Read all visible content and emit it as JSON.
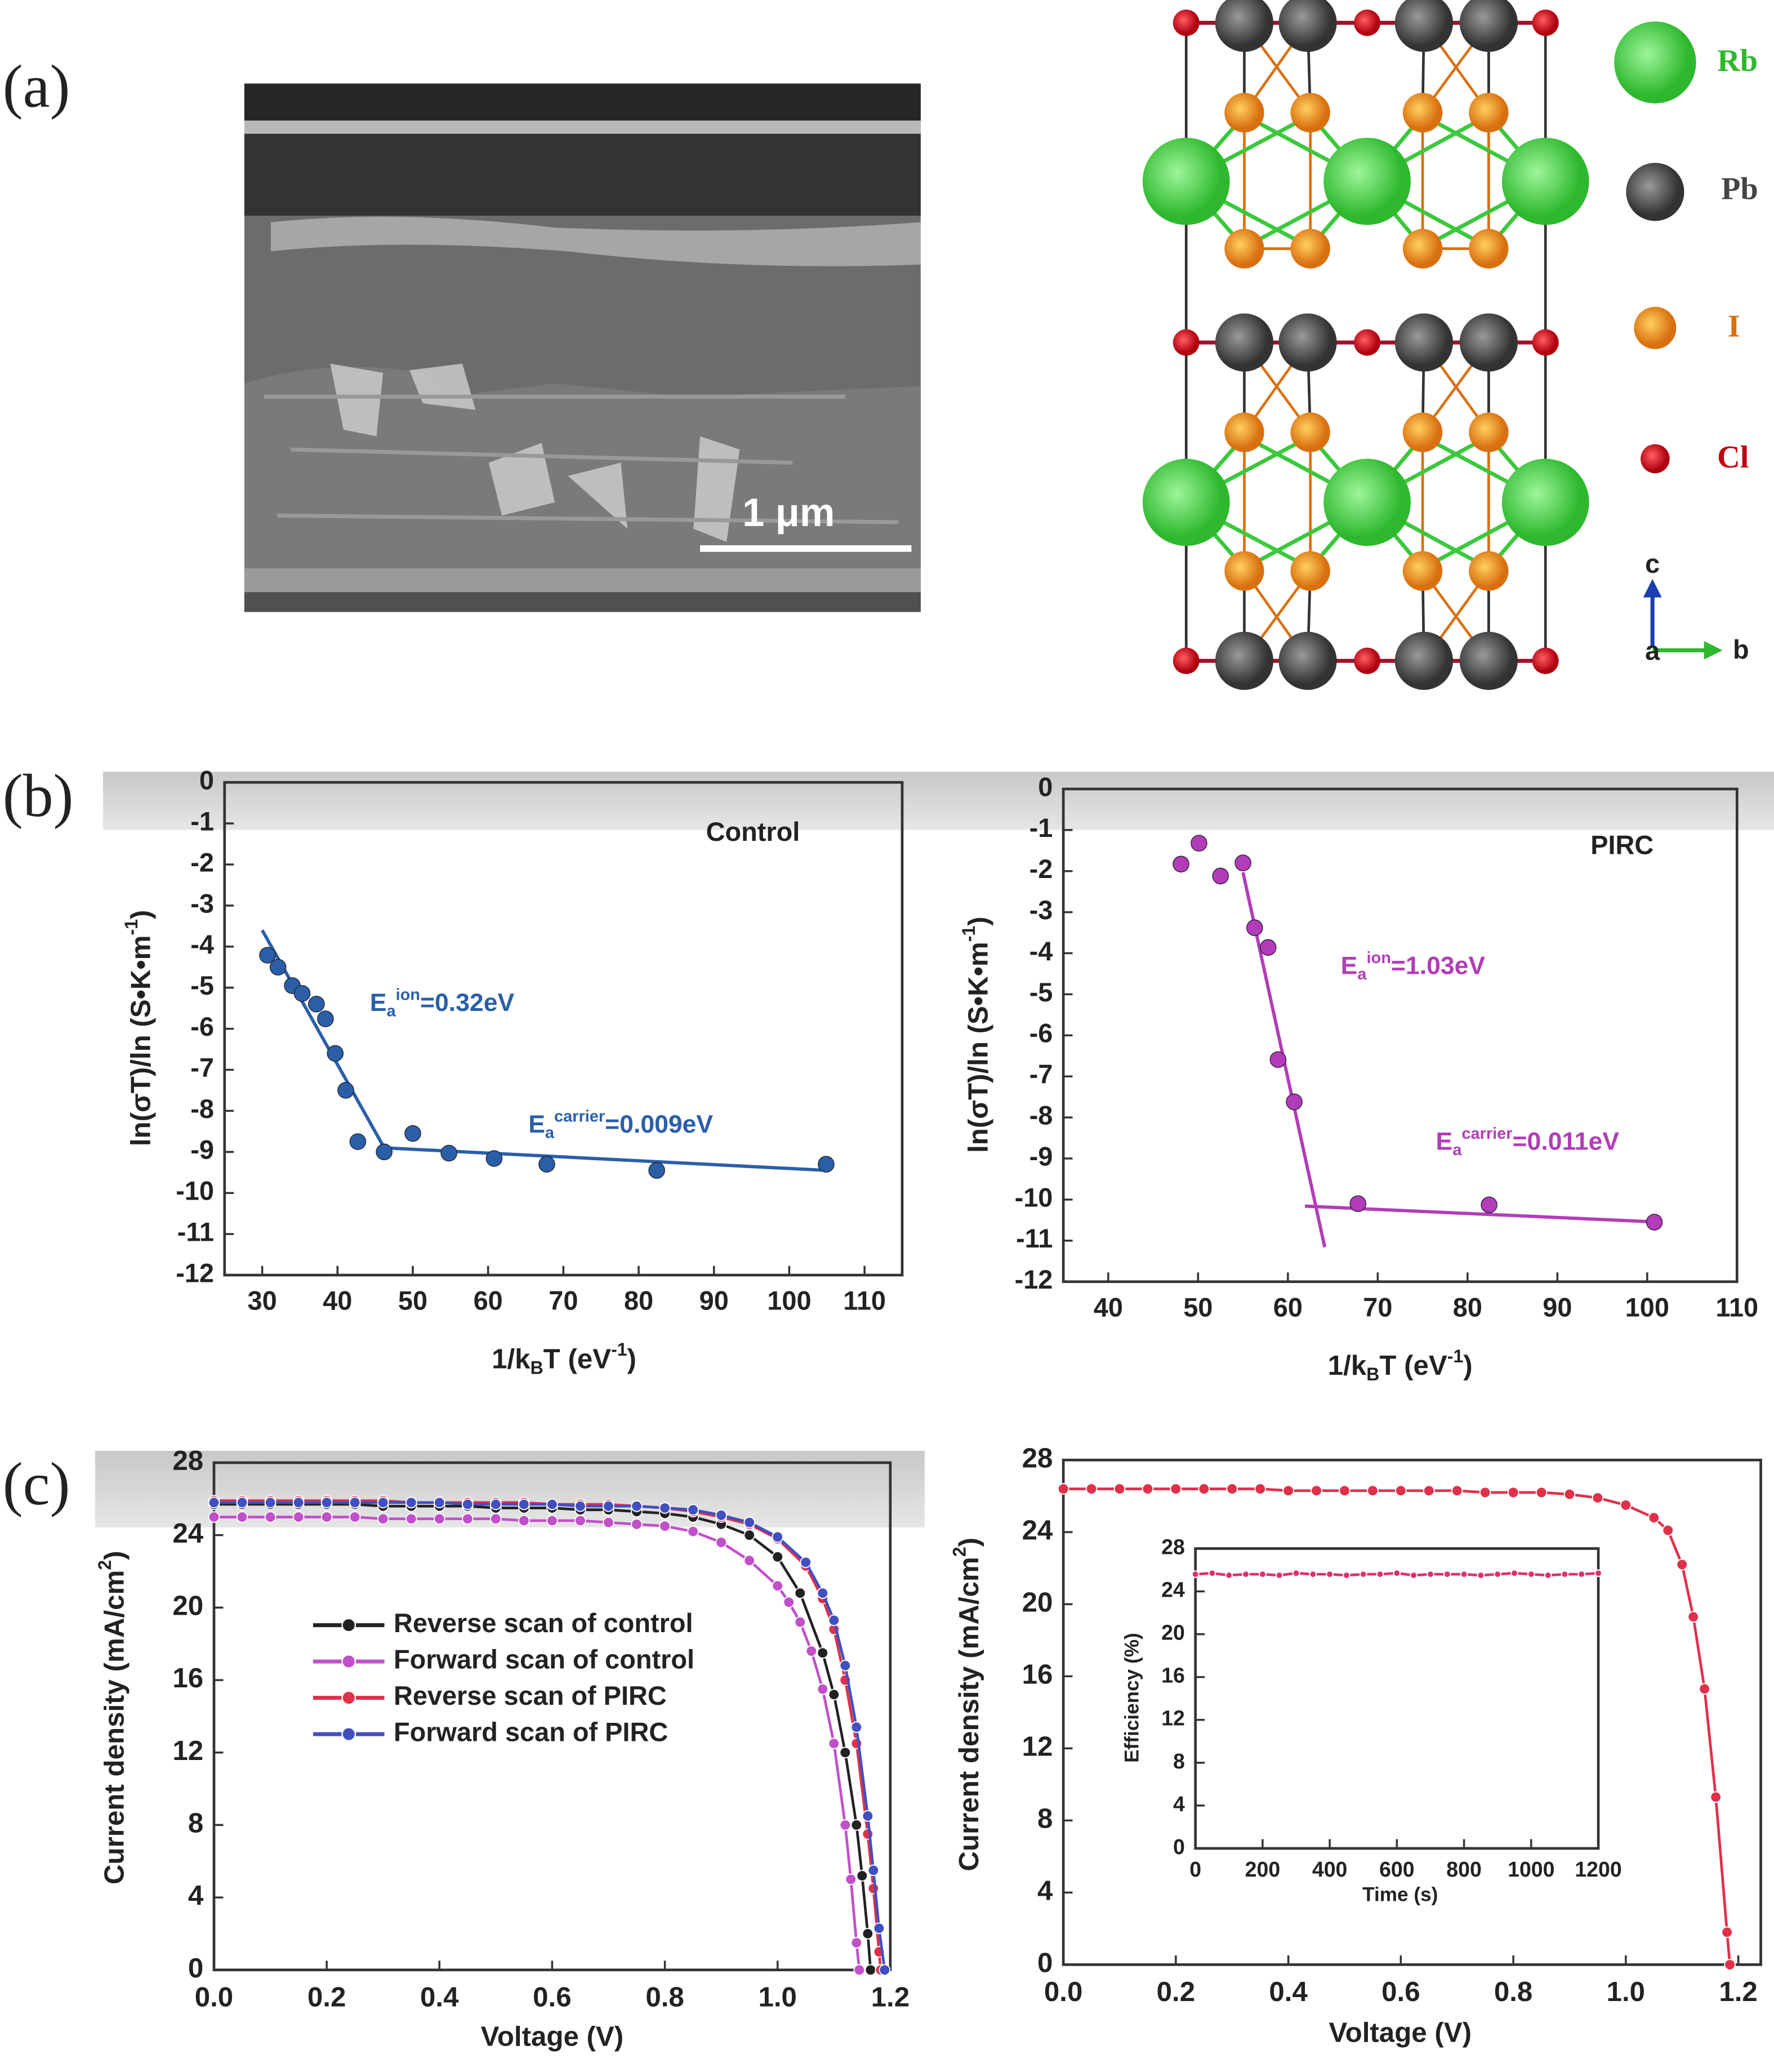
{
  "panel_labels": [
    "(a)",
    "(b)",
    "(c)"
  ],
  "sem": {
    "scale_bar": "1 μm"
  },
  "structure": {
    "legend": [
      "Rb",
      "Pb",
      "I",
      "Cl"
    ],
    "axes": [
      "c",
      "a",
      "b"
    ]
  },
  "chart_data": [
    {
      "type": "scatter",
      "title": "Control",
      "xlabel": [
        {
          "t": "1/k"
        },
        {
          "sub": "B"
        },
        {
          "t": "T (eV"
        },
        {
          "sup": "-1"
        },
        {
          "t": ")"
        }
      ],
      "ylabel": [
        {
          "t": "ln(σT)/ln (S•K•m"
        },
        {
          "sup": "-1"
        },
        {
          "t": ")"
        }
      ],
      "xlim": [
        25,
        115
      ],
      "ylim": [
        -12,
        0
      ],
      "xticks": [
        30,
        40,
        50,
        60,
        70,
        80,
        90,
        100,
        110
      ],
      "yticks": [
        0,
        -1,
        -2,
        -3,
        -4,
        -5,
        -6,
        -7,
        -8,
        -9,
        -10,
        -11,
        -12
      ],
      "series": [
        {
          "color": "#2a5fa8",
          "x": [
            30.7,
            32.1,
            34.0,
            35.3,
            37.2,
            38.4,
            39.7,
            41.1,
            42.7,
            46.2,
            50.0,
            54.8,
            60.8,
            67.8,
            82.4,
            104.9
          ],
          "values": [
            -4.21,
            -4.5,
            -4.95,
            -5.14,
            -5.4,
            -5.76,
            -6.6,
            -7.5,
            -8.75,
            -9.0,
            -8.55,
            -9.03,
            -9.16,
            -9.3,
            -9.45,
            -9.3
          ]
        }
      ],
      "fits": [
        {
          "x": [
            30,
            46.2
          ],
          "values": [
            -3.6,
            -8.9
          ]
        },
        {
          "x": [
            46.2,
            105
          ],
          "values": [
            -8.9,
            -9.45
          ]
        }
      ],
      "annotations": [
        {
          "parts": [
            {
              "t": "E"
            },
            {
              "sub": "a"
            },
            {
              "sup": "ion"
            },
            {
              "t": "=0.32eV"
            }
          ]
        },
        {
          "parts": [
            {
              "t": "E"
            },
            {
              "sub": "a"
            },
            {
              "sup": "carrier"
            },
            {
              "t": "=0.009eV"
            }
          ]
        }
      ]
    },
    {
      "type": "scatter",
      "title": "PIRC",
      "xlabel": [
        {
          "t": "1/k"
        },
        {
          "sub": "B"
        },
        {
          "t": "T (eV"
        },
        {
          "sup": "-1"
        },
        {
          "t": ")"
        }
      ],
      "ylabel": [
        {
          "t": "ln(σT)/ln (S•K•m"
        },
        {
          "sup": "-1"
        },
        {
          "t": ")"
        }
      ],
      "xlim": [
        35,
        110
      ],
      "ylim": [
        -12,
        0
      ],
      "xticks": [
        40,
        50,
        60,
        70,
        80,
        90,
        100,
        110
      ],
      "yticks": [
        0,
        -1,
        -2,
        -3,
        -4,
        -5,
        -6,
        -7,
        -8,
        -9,
        -10,
        -11,
        -12
      ],
      "series": [
        {
          "color": "#b23cb8",
          "x": [
            48.1,
            50.1,
            52.5,
            55.0,
            56.3,
            57.8,
            58.9,
            60.7,
            67.8,
            82.4,
            100.8
          ],
          "values": [
            -1.83,
            -1.32,
            -2.12,
            -1.8,
            -3.38,
            -3.86,
            -6.59,
            -7.62,
            -10.1,
            -10.13,
            -10.55
          ]
        }
      ],
      "fits": [
        {
          "x": [
            55.0,
            64.1
          ],
          "values": [
            -2.03,
            -11.16
          ]
        },
        {
          "x": [
            61.9,
            101.5
          ],
          "values": [
            -10.16,
            -10.55
          ]
        }
      ],
      "annotations": [
        {
          "parts": [
            {
              "t": "E"
            },
            {
              "sub": "a"
            },
            {
              "sup": "ion"
            },
            {
              "t": "=1.03eV"
            }
          ]
        },
        {
          "parts": [
            {
              "t": "E"
            },
            {
              "sub": "a"
            },
            {
              "sup": "carrier"
            },
            {
              "t": "=0.011eV"
            }
          ]
        }
      ]
    },
    {
      "type": "line",
      "xlabel": [
        {
          "t": "Voltage (V)"
        }
      ],
      "ylabel": [
        {
          "t": "Current density (mA/cm"
        },
        {
          "sup": "2"
        },
        {
          "t": ")"
        }
      ],
      "xlim": [
        0,
        1.2
      ],
      "ylim": [
        0,
        28
      ],
      "xticks": [
        {
          "value": 0,
          "label": "0.0"
        },
        0.2,
        0.4,
        0.6,
        0.8,
        {
          "value": 1,
          "label": "1.0"
        },
        1.2
      ],
      "yticks": [
        0,
        4,
        8,
        12,
        16,
        20,
        24,
        28
      ],
      "series": [
        {
          "name": "Reverse scan of control",
          "color": "#222222",
          "x": [
            0,
            0.05,
            0.1,
            0.15,
            0.2,
            0.25,
            0.3,
            0.35,
            0.4,
            0.45,
            0.5,
            0.55,
            0.6,
            0.65,
            0.7,
            0.75,
            0.8,
            0.85,
            0.9,
            0.95,
            1.0,
            1.04,
            1.08,
            1.1,
            1.12,
            1.14,
            1.15,
            1.16,
            1.165
          ],
          "values": [
            25.7,
            25.7,
            25.7,
            25.7,
            25.7,
            25.7,
            25.6,
            25.6,
            25.6,
            25.6,
            25.5,
            25.5,
            25.5,
            25.4,
            25.4,
            25.3,
            25.2,
            25.0,
            24.6,
            24.0,
            22.8,
            20.8,
            17.5,
            15.2,
            12.0,
            8.0,
            5.2,
            2.0,
            0
          ]
        },
        {
          "name": "Forward scan of control",
          "color": "#c050c8",
          "x": [
            0,
            0.05,
            0.1,
            0.15,
            0.2,
            0.25,
            0.3,
            0.35,
            0.4,
            0.45,
            0.5,
            0.55,
            0.6,
            0.65,
            0.7,
            0.75,
            0.8,
            0.85,
            0.9,
            0.95,
            1.0,
            1.02,
            1.04,
            1.06,
            1.08,
            1.1,
            1.12,
            1.13,
            1.14,
            1.145
          ],
          "values": [
            25.0,
            25.0,
            25.0,
            25.0,
            25.0,
            25.0,
            24.9,
            24.9,
            24.9,
            24.9,
            24.9,
            24.8,
            24.8,
            24.8,
            24.7,
            24.6,
            24.5,
            24.2,
            23.6,
            22.6,
            21.2,
            20.3,
            19.2,
            17.6,
            15.5,
            12.5,
            8.0,
            5.0,
            1.5,
            0
          ]
        },
        {
          "name": "Reverse scan of PIRC",
          "color": "#e0304a",
          "x": [
            0,
            0.05,
            0.1,
            0.15,
            0.2,
            0.25,
            0.3,
            0.35,
            0.4,
            0.45,
            0.5,
            0.55,
            0.6,
            0.65,
            0.7,
            0.75,
            0.8,
            0.85,
            0.9,
            0.95,
            1.0,
            1.05,
            1.08,
            1.1,
            1.12,
            1.14,
            1.16,
            1.17,
            1.18,
            1.183
          ],
          "values": [
            25.9,
            25.9,
            25.9,
            25.9,
            25.9,
            25.9,
            25.9,
            25.8,
            25.8,
            25.8,
            25.8,
            25.8,
            25.7,
            25.7,
            25.7,
            25.6,
            25.5,
            25.3,
            25.0,
            24.6,
            23.8,
            22.3,
            20.5,
            18.8,
            16.0,
            12.5,
            7.5,
            4.5,
            1.0,
            0
          ]
        },
        {
          "name": "Forward scan of PIRC",
          "color": "#4050c0",
          "x": [
            0,
            0.05,
            0.1,
            0.15,
            0.2,
            0.25,
            0.3,
            0.35,
            0.4,
            0.45,
            0.5,
            0.55,
            0.6,
            0.65,
            0.7,
            0.75,
            0.8,
            0.85,
            0.9,
            0.95,
            1.0,
            1.05,
            1.08,
            1.1,
            1.12,
            1.14,
            1.16,
            1.17,
            1.18,
            1.19
          ],
          "values": [
            25.8,
            25.8,
            25.8,
            25.8,
            25.8,
            25.8,
            25.8,
            25.8,
            25.8,
            25.7,
            25.7,
            25.7,
            25.7,
            25.6,
            25.6,
            25.6,
            25.5,
            25.4,
            25.1,
            24.7,
            23.9,
            22.5,
            20.8,
            19.3,
            16.8,
            13.4,
            8.5,
            5.5,
            2.3,
            0
          ]
        }
      ]
    },
    {
      "type": "line",
      "xlabel": [
        {
          "t": "Voltage (V)"
        }
      ],
      "ylabel": [
        {
          "t": "Current density (mA/cm"
        },
        {
          "sup": "2"
        },
        {
          "t": ")"
        }
      ],
      "xlim": [
        0,
        1.24
      ],
      "ylim": [
        0,
        28
      ],
      "xticks": [
        {
          "value": 0,
          "label": "0.0"
        },
        0.2,
        0.4,
        0.6,
        0.8,
        {
          "value": 1,
          "label": "1.0"
        },
        1.2
      ],
      "yticks": [
        0,
        4,
        8,
        12,
        16,
        20,
        24,
        28
      ],
      "series": [
        {
          "color": "#e0304a",
          "x": [
            0,
            0.05,
            0.1,
            0.15,
            0.2,
            0.25,
            0.3,
            0.35,
            0.4,
            0.45,
            0.5,
            0.55,
            0.6,
            0.65,
            0.7,
            0.75,
            0.8,
            0.85,
            0.9,
            0.95,
            1.0,
            1.05,
            1.075,
            1.1,
            1.12,
            1.14,
            1.16,
            1.18,
            1.185
          ],
          "values": [
            26.4,
            26.4,
            26.4,
            26.4,
            26.4,
            26.4,
            26.4,
            26.4,
            26.3,
            26.3,
            26.3,
            26.3,
            26.3,
            26.3,
            26.3,
            26.2,
            26.2,
            26.2,
            26.1,
            25.9,
            25.5,
            24.8,
            24.1,
            22.2,
            19.3,
            15.3,
            9.3,
            1.8,
            0
          ]
        }
      ],
      "inset": {
        "type": "line",
        "xlabel": [
          {
            "t": "Time (s)"
          }
        ],
        "ylabel": [
          {
            "t": "Efficiency (%)"
          }
        ],
        "xlim": [
          0,
          1200
        ],
        "ylim": [
          0,
          28
        ],
        "xticks": [
          0,
          200,
          400,
          600,
          800,
          1000,
          1200
        ],
        "yticks": [
          0,
          4,
          8,
          12,
          16,
          20,
          24,
          28
        ],
        "series": [
          {
            "color": "#e0306a",
            "x": [
              0,
              50,
              100,
              150,
              200,
              250,
              300,
              350,
              400,
              450,
              500,
              550,
              600,
              650,
              700,
              750,
              800,
              850,
              900,
              950,
              1000,
              1050,
              1100,
              1150,
              1200
            ],
            "values": [
              25.6,
              25.7,
              25.5,
              25.6,
              25.6,
              25.5,
              25.7,
              25.6,
              25.6,
              25.5,
              25.6,
              25.6,
              25.7,
              25.5,
              25.6,
              25.6,
              25.6,
              25.5,
              25.6,
              25.7,
              25.6,
              25.5,
              25.6,
              25.6,
              25.7
            ]
          }
        ]
      }
    }
  ]
}
